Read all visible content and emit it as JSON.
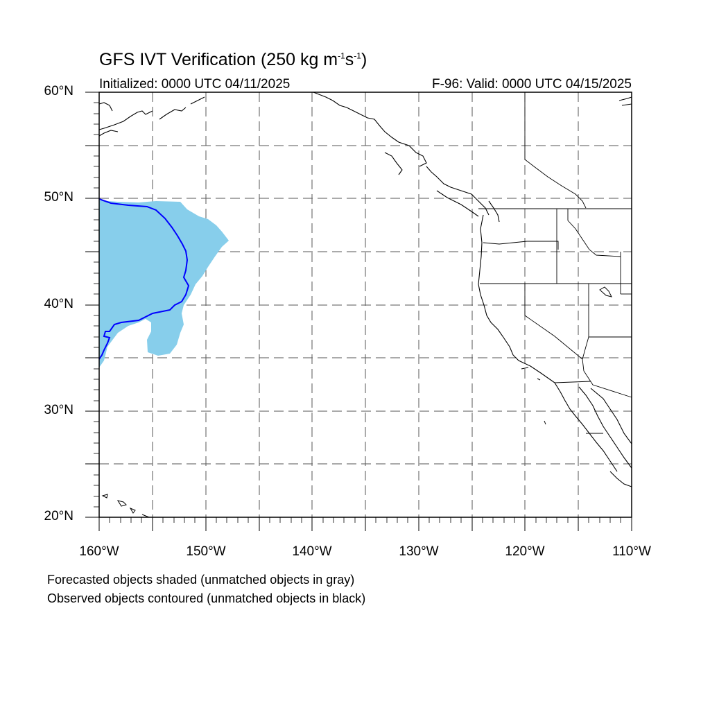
{
  "title_main": "GFS IVT Verification (250 kg m",
  "title_sup1": "-1",
  "title_mid": "s",
  "title_sup2": "-1",
  "title_end": ")",
  "initialized": "Initialized: 0000 UTC 04/11/2025",
  "valid": "F-96: Valid: 0000 UTC 04/15/2025",
  "lat_labels": [
    "60°N",
    "50°N",
    "40°N",
    "30°N",
    "20°N"
  ],
  "lon_labels": [
    "160°W",
    "150°W",
    "140°W",
    "130°W",
    "120°W",
    "110°W"
  ],
  "legend": {
    "line1": "Forecasted objects shaded (unmatched objects in gray)",
    "line2": "Observed objects contoured (unmatched objects in black)"
  },
  "map": {
    "lon_range": [
      -160,
      -110
    ],
    "lat_range": [
      20,
      60
    ],
    "grid_spacing_deg": 5,
    "forecast_fill_color": "#87CEEB",
    "observed_contour_color": "#0000ff",
    "coast_color": "#000000"
  }
}
